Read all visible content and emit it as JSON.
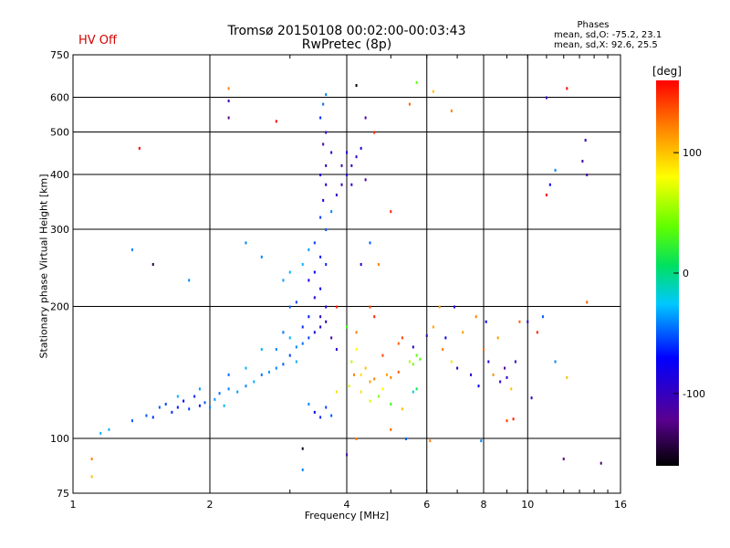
{
  "chart": {
    "title_line1": "Tromsø 20150108 00:02:00-00:03:43",
    "title_line2": "RwPretec (8p)",
    "status": "HV Off",
    "stats_header": "Phases",
    "stats_line1": "mean, sd,O: -75.2, 23.1",
    "stats_line2": "mean, sd,X:  92.6, 25.5",
    "colorbar_unit": "[deg]",
    "colorbar_ticks": [
      "100",
      "0",
      "-100"
    ]
  },
  "colors": {
    "grid": "#000000",
    "status": "#d40000"
  },
  "chart_data": {
    "type": "scatter",
    "xlabel": "Frequency [MHz]",
    "ylabel": "Stationary phase Virtual Height [km]",
    "x_scale": "log",
    "y_scale": "log",
    "xlim": [
      1,
      16
    ],
    "ylim": [
      75,
      750
    ],
    "x_ticks": [
      1,
      2,
      4,
      6,
      8,
      10,
      16
    ],
    "x_tick_labels": [
      "1",
      "2",
      "4",
      "6",
      "8",
      "10",
      "16"
    ],
    "y_ticks": [
      75,
      100,
      200,
      300,
      400,
      500,
      600,
      750
    ],
    "y_tick_labels": [
      "75",
      "100",
      "200",
      "300",
      "400",
      "500",
      "600",
      "750"
    ],
    "grid": true,
    "colorbar": {
      "label": "[deg]",
      "range": [
        -160,
        160
      ],
      "ticks": [
        100,
        0,
        -100
      ]
    },
    "series": [
      {
        "points": [
          [
            1.15,
            103,
            -30
          ],
          [
            1.2,
            105,
            -30
          ],
          [
            1.35,
            110,
            -50
          ],
          [
            1.45,
            113,
            -50
          ],
          [
            1.5,
            112,
            -60
          ],
          [
            1.55,
            118,
            -50
          ],
          [
            1.6,
            120,
            -55
          ],
          [
            1.65,
            115,
            -60
          ],
          [
            1.7,
            118,
            -65
          ],
          [
            1.75,
            122,
            -70
          ],
          [
            1.8,
            117,
            -55
          ],
          [
            1.85,
            125,
            -60
          ],
          [
            1.9,
            119,
            -65
          ],
          [
            1.95,
            121,
            -50
          ],
          [
            2.0,
            118,
            -40
          ],
          [
            2.05,
            123,
            -35
          ],
          [
            2.1,
            127,
            -45
          ],
          [
            2.15,
            119,
            -30
          ],
          [
            2.2,
            130,
            -40
          ],
          [
            2.3,
            128,
            -35
          ],
          [
            2.4,
            132,
            -40
          ],
          [
            2.5,
            135,
            -30
          ],
          [
            2.6,
            140,
            -45
          ],
          [
            2.7,
            142,
            -35
          ],
          [
            2.8,
            145,
            -40
          ],
          [
            2.9,
            148,
            -50
          ],
          [
            3.0,
            155,
            -55
          ],
          [
            3.1,
            162,
            -40
          ],
          [
            3.2,
            165,
            -45
          ],
          [
            3.3,
            170,
            -55
          ],
          [
            3.0,
            170,
            -30
          ],
          [
            3.1,
            150,
            -30
          ],
          [
            2.8,
            160,
            -40
          ],
          [
            2.9,
            175,
            -45
          ],
          [
            1.7,
            125,
            -30
          ],
          [
            1.9,
            130,
            -35
          ],
          [
            2.2,
            140,
            -45
          ],
          [
            2.4,
            145,
            -30
          ],
          [
            2.6,
            160,
            -30
          ],
          [
            3.4,
            175,
            -80
          ],
          [
            3.5,
            180,
            -90
          ],
          [
            3.6,
            185,
            -100
          ],
          [
            3.7,
            170,
            -110
          ],
          [
            3.8,
            160,
            -90
          ],
          [
            3.5,
            190,
            -95
          ],
          [
            3.6,
            200,
            -85
          ],
          [
            3.4,
            210,
            -90
          ],
          [
            3.5,
            220,
            -75
          ],
          [
            3.3,
            230,
            -85
          ],
          [
            3.4,
            240,
            -70
          ],
          [
            3.6,
            250,
            -60
          ],
          [
            3.5,
            260,
            -65
          ],
          [
            3.4,
            280,
            -55
          ],
          [
            3.6,
            300,
            -50
          ],
          [
            3.5,
            320,
            -55
          ],
          [
            3.55,
            350,
            -80
          ],
          [
            3.6,
            380,
            -85
          ],
          [
            3.5,
            400,
            -90
          ],
          [
            3.6,
            420,
            -100
          ],
          [
            3.7,
            450,
            -95
          ],
          [
            3.55,
            470,
            -110
          ],
          [
            3.6,
            500,
            -90
          ],
          [
            3.5,
            540,
            -60
          ],
          [
            3.55,
            580,
            -45
          ],
          [
            3.6,
            610,
            -40
          ],
          [
            3.7,
            330,
            -40
          ],
          [
            3.8,
            360,
            -95
          ],
          [
            3.9,
            380,
            -100
          ],
          [
            4.0,
            400,
            -90
          ],
          [
            4.1,
            420,
            -95
          ],
          [
            4.2,
            440,
            -100
          ],
          [
            4.3,
            460,
            -80
          ],
          [
            4.4,
            390,
            -110
          ],
          [
            3.9,
            420,
            -100
          ],
          [
            4.0,
            450,
            -85
          ],
          [
            4.1,
            380,
            -95
          ],
          [
            3.3,
            270,
            -35
          ],
          [
            3.2,
            250,
            -30
          ],
          [
            3.0,
            240,
            -30
          ],
          [
            2.9,
            230,
            -35
          ],
          [
            3.0,
            200,
            -50
          ],
          [
            3.1,
            205,
            -55
          ],
          [
            3.2,
            180,
            -60
          ],
          [
            3.3,
            190,
            -65
          ],
          [
            3.4,
            115,
            -70
          ],
          [
            3.5,
            112,
            -60
          ],
          [
            3.6,
            118,
            -55
          ],
          [
            3.7,
            113,
            -50
          ],
          [
            3.3,
            120,
            -40
          ],
          [
            4.0,
            180,
            30
          ],
          [
            4.1,
            150,
            60
          ],
          [
            4.2,
            160,
            80
          ],
          [
            4.3,
            140,
            90
          ],
          [
            4.4,
            145,
            100
          ],
          [
            4.5,
            135,
            110
          ],
          [
            4.6,
            137,
            120
          ],
          [
            4.8,
            130,
            80
          ],
          [
            4.9,
            140,
            110
          ],
          [
            5.0,
            138,
            120
          ],
          [
            5.2,
            142,
            130
          ],
          [
            5.5,
            150,
            60
          ],
          [
            5.6,
            148,
            45
          ],
          [
            5.7,
            155,
            40
          ],
          [
            5.8,
            152,
            35
          ],
          [
            4.5,
            200,
            140
          ],
          [
            4.6,
            190,
            150
          ],
          [
            4.2,
            175,
            120
          ],
          [
            4.3,
            128,
            90
          ],
          [
            4.5,
            122,
            70
          ],
          [
            4.7,
            125,
            50
          ],
          [
            5.0,
            120,
            30
          ],
          [
            5.6,
            128,
            -20
          ],
          [
            5.7,
            130,
            10
          ],
          [
            6.5,
            160,
            120
          ],
          [
            6.6,
            170,
            -80
          ],
          [
            6.8,
            150,
            90
          ],
          [
            7.0,
            145,
            -95
          ],
          [
            7.2,
            175,
            110
          ],
          [
            7.5,
            140,
            -90
          ],
          [
            7.8,
            132,
            -70
          ],
          [
            8.0,
            160,
            130
          ],
          [
            8.2,
            150,
            -85
          ],
          [
            8.4,
            140,
            115
          ],
          [
            8.7,
            135,
            -100
          ],
          [
            8.9,
            145,
            -110
          ],
          [
            9.0,
            138,
            -95
          ],
          [
            9.2,
            130,
            100
          ],
          [
            9.4,
            150,
            -100
          ],
          [
            9.6,
            185,
            130
          ],
          [
            10.0,
            185,
            -90
          ],
          [
            10.5,
            175,
            150
          ],
          [
            10.8,
            190,
            -50
          ],
          [
            6.4,
            200,
            110
          ],
          [
            6.9,
            200,
            -90
          ],
          [
            7.7,
            190,
            120
          ],
          [
            8.1,
            185,
            -70
          ],
          [
            8.6,
            170,
            110
          ],
          [
            11.5,
            150,
            -40
          ],
          [
            12.2,
            138,
            100
          ],
          [
            13.5,
            205,
            130
          ],
          [
            2.2,
            630,
            120
          ],
          [
            2.2,
            590,
            -110
          ],
          [
            2.2,
            540,
            -120
          ],
          [
            2.8,
            530,
            160
          ],
          [
            4.4,
            540,
            -110
          ],
          [
            4.6,
            500,
            150
          ],
          [
            5.5,
            580,
            130
          ],
          [
            6.2,
            620,
            100
          ],
          [
            6.8,
            560,
            120
          ],
          [
            4.2,
            640,
            -160
          ],
          [
            5.7,
            650,
            40
          ],
          [
            1.4,
            460,
            160
          ],
          [
            1.35,
            270,
            -40
          ],
          [
            1.5,
            250,
            -140
          ],
          [
            1.8,
            230,
            -40
          ],
          [
            2.4,
            280,
            -40
          ],
          [
            2.6,
            260,
            -40
          ],
          [
            4.5,
            280,
            -50
          ],
          [
            4.3,
            250,
            -90
          ],
          [
            4.7,
            250,
            120
          ],
          [
            5.0,
            330,
            150
          ],
          [
            5.3,
            170,
            140
          ],
          [
            11.0,
            600,
            -100
          ],
          [
            12.2,
            630,
            160
          ],
          [
            13.2,
            430,
            -110
          ],
          [
            13.4,
            480,
            -100
          ],
          [
            13.5,
            400,
            -110
          ],
          [
            11.2,
            380,
            -70
          ],
          [
            11.5,
            410,
            -40
          ],
          [
            11.0,
            360,
            160
          ],
          [
            12.0,
            90,
            -120
          ],
          [
            14.5,
            88,
            -130
          ],
          [
            1.1,
            90,
            120
          ],
          [
            1.1,
            82,
            100
          ],
          [
            3.2,
            85,
            -40
          ],
          [
            4.0,
            92,
            -110
          ],
          [
            3.2,
            95,
            -150
          ],
          [
            4.2,
            100,
            120
          ],
          [
            5.0,
            105,
            130
          ],
          [
            5.4,
            100,
            -50
          ],
          [
            6.1,
            99,
            120
          ],
          [
            7.9,
            99,
            -40
          ],
          [
            9.0,
            110,
            140
          ],
          [
            9.3,
            111,
            150
          ],
          [
            10.2,
            124,
            -100
          ],
          [
            5.3,
            117,
            100
          ],
          [
            4.8,
            155,
            140
          ],
          [
            5.2,
            165,
            130
          ],
          [
            3.8,
            128,
            90
          ],
          [
            4.05,
            132,
            70
          ],
          [
            4.15,
            140,
            120
          ],
          [
            5.6,
            162,
            -95
          ],
          [
            6.0,
            172,
            -100
          ],
          [
            6.2,
            180,
            110
          ],
          [
            3.8,
            200,
            150
          ]
        ]
      }
    ]
  }
}
